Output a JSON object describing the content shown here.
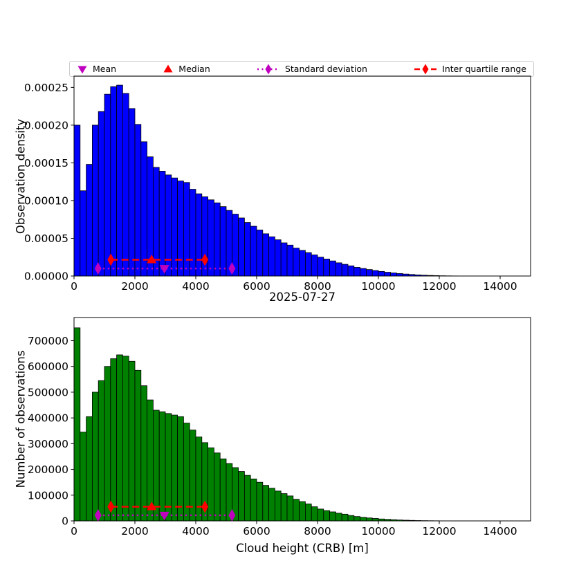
{
  "figure": {
    "title_between": "2025-07-27",
    "xlabel": "Cloud height (CRB) [m]",
    "background": "#FFFFFF"
  },
  "colors": {
    "top_bars": "#0000FF",
    "bottom_bars": "#008000",
    "bar_edge": "#000000",
    "red": "#FF0000",
    "magenta": "#BF00BF",
    "axis": "#000000",
    "legend_border": "#CCCCCC"
  },
  "legend": {
    "entries": [
      {
        "label": "Mean",
        "marker": "triangle-down",
        "color": "#BF00BF",
        "line": "none"
      },
      {
        "label": "Median",
        "marker": "triangle-up",
        "color": "#FF0000",
        "line": "none"
      },
      {
        "label": "Standard deviation",
        "marker": "thin-diamond",
        "color": "#BF00BF",
        "line": "dotted"
      },
      {
        "label": "Inter quartile range",
        "marker": "thin-diamond",
        "color": "#FF0000",
        "line": "dashed"
      }
    ]
  },
  "chart_data": [
    {
      "type": "bar",
      "name": "observation-density-histogram",
      "ylabel": "Observation density",
      "bar_color": "#0000FF",
      "edge_color": "#000000",
      "bin_start": 0,
      "bin_width": 200,
      "xlim": [
        0,
        15000
      ],
      "ylim": [
        0,
        0.000265
      ],
      "xticks": [
        0,
        2000,
        4000,
        6000,
        8000,
        10000,
        12000,
        14000
      ],
      "xtick_labels": [
        "0",
        "2000",
        "4000",
        "6000",
        "8000",
        "10000",
        "12000",
        "14000"
      ],
      "yticks": [
        0,
        5e-05,
        0.0001,
        0.00015,
        0.0002,
        0.00025
      ],
      "ytick_labels": [
        "0.00000",
        "0.00005",
        "0.00010",
        "0.00015",
        "0.00020",
        "0.00025"
      ],
      "values": [
        0.0002,
        0.000113,
        0.000148,
        0.0002,
        0.000218,
        0.000241,
        0.000251,
        0.000253,
        0.000242,
        0.000222,
        0.000201,
        0.000178,
        0.000158,
        0.000144,
        0.000139,
        0.000134,
        0.00013,
        0.000126,
        0.000124,
        0.000115,
        0.000109,
        0.000105,
        0.000101,
        9.7e-05,
        9.2e-05,
        8.7e-05,
        8.2e-05,
        7.7e-05,
        7.1e-05,
        6.6e-05,
        6.1e-05,
        5.6e-05,
        5.2e-05,
        4.8e-05,
        4.4e-05,
        4.1e-05,
        3.7e-05,
        3.4e-05,
        3.1e-05,
        2.8e-05,
        2.5e-05,
        2.25e-05,
        2e-05,
        1.75e-05,
        1.55e-05,
        1.35e-05,
        1.15e-05,
        1e-05,
        8.6e-06,
        7.3e-06,
        6.1e-06,
        5e-06,
        4.1e-06,
        3.3e-06,
        2.6e-06,
        2e-06,
        1.5e-06,
        1.1e-06,
        8e-07,
        5.5e-07,
        3.5e-07,
        2.2e-07,
        1.3e-07,
        8e-08,
        4e-08,
        2e-08,
        1e-08,
        0,
        0,
        0,
        0,
        0,
        0,
        0,
        0
      ],
      "markers": {
        "mean": {
          "x": 2970,
          "y": 1e-05,
          "color": "#BF00BF",
          "marker": "triangle-down"
        },
        "median": {
          "x": 2550,
          "y": 2.16e-05,
          "color": "#FF0000",
          "marker": "triangle-up"
        },
        "std_range": {
          "x1": 790,
          "x2": 5190,
          "y": 1e-05,
          "color": "#BF00BF",
          "style": "dotted"
        },
        "iqr_range": {
          "x1": 1210,
          "x2": 4300,
          "y": 2.16e-05,
          "color": "#FF0000",
          "style": "dashed"
        }
      }
    },
    {
      "type": "bar",
      "name": "number-of-observations-histogram",
      "ylabel": "Number of observations",
      "bar_color": "#008000",
      "edge_color": "#000000",
      "bin_start": 0,
      "bin_width": 200,
      "xlim": [
        0,
        15000
      ],
      "ylim": [
        0,
        790000
      ],
      "xticks": [
        0,
        2000,
        4000,
        6000,
        8000,
        10000,
        12000,
        14000
      ],
      "xtick_labels": [
        "0",
        "2000",
        "4000",
        "6000",
        "8000",
        "10000",
        "12000",
        "14000"
      ],
      "yticks": [
        0,
        100000,
        200000,
        300000,
        400000,
        500000,
        600000,
        700000
      ],
      "ytick_labels": [
        "0",
        "100000",
        "200000",
        "300000",
        "400000",
        "500000",
        "600000",
        "700000"
      ],
      "values": [
        750000,
        345000,
        405000,
        500000,
        545000,
        600000,
        630000,
        645000,
        640000,
        620000,
        585000,
        525000,
        470000,
        430000,
        424000,
        417000,
        411000,
        405000,
        380000,
        353000,
        326000,
        304000,
        284000,
        264000,
        241000,
        223000,
        207000,
        192000,
        177000,
        163000,
        150000,
        138000,
        127000,
        116000,
        106000,
        97000,
        84000,
        75000,
        66000,
        55000,
        46000,
        40000,
        35000,
        30000,
        26000,
        21000,
        17000,
        14000,
        11500,
        9500,
        7500,
        6000,
        4700,
        3600,
        2700,
        2000,
        1400,
        1000,
        700,
        450,
        280,
        170,
        100,
        60,
        30,
        15,
        5,
        0,
        0,
        0,
        0,
        0,
        0,
        0,
        0
      ],
      "markers": {
        "mean": {
          "x": 2970,
          "y": 22000,
          "color": "#BF00BF",
          "marker": "triangle-down"
        },
        "median": {
          "x": 2550,
          "y": 55000,
          "color": "#FF0000",
          "marker": "triangle-up"
        },
        "std_range": {
          "x1": 790,
          "x2": 5190,
          "y": 22000,
          "color": "#BF00BF",
          "style": "dotted"
        },
        "iqr_range": {
          "x1": 1210,
          "x2": 4300,
          "y": 55000,
          "color": "#FF0000",
          "style": "dashed"
        }
      }
    }
  ]
}
